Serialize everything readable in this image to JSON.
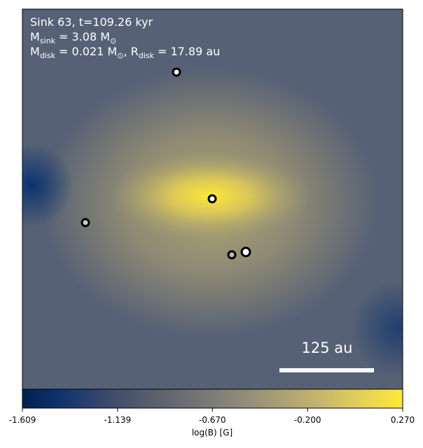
{
  "chart_data": {
    "type": "heatmap",
    "annotations": [
      "Sink 63, t=109.26 kyr",
      "M_sink = 3.08 M_⊙",
      "M_disk = 0.021 M_⊙, R_disk = 17.89 au"
    ],
    "scale_bar_label": "125 au",
    "colorbar": {
      "label": "log(B) [G]",
      "colormap": "cividis",
      "xlim": [
        -1.609,
        0.27
      ],
      "xticks": [
        -1.609,
        -1.139,
        {
          "value": -0.67,
          "label": "-0.670"
        },
        {
          "value": -0.2,
          "label": "-0.200"
        },
        {
          "value": 0.27,
          "label": "0.270"
        }
      ]
    }
  }
}
